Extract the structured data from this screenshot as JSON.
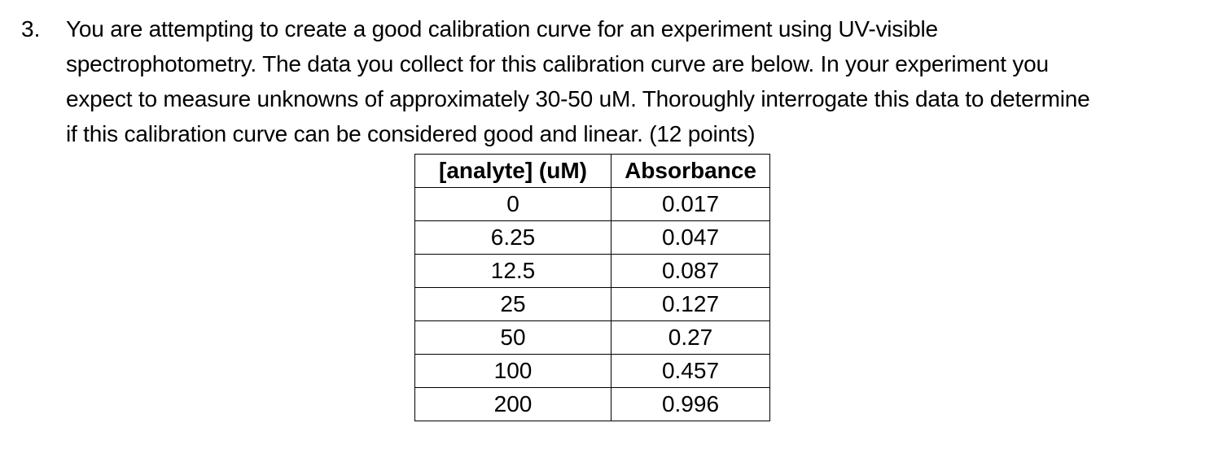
{
  "question": {
    "number": "3.",
    "lines": [
      "You are attempting to create a good calibration curve for an experiment using UV-visible",
      "spectrophotometry. The data you collect for this calibration curve are below. In your experiment you",
      "expect to measure unknowns of approximately 30-50 uM. Thoroughly interrogate this data to determine",
      "if this calibration curve can be considered good and linear. (12 points)"
    ]
  },
  "table": {
    "headers": [
      "[analyte] (uM)",
      "Absorbance"
    ],
    "rows": [
      [
        "0",
        "0.017"
      ],
      [
        "6.25",
        "0.047"
      ],
      [
        "12.5",
        "0.087"
      ],
      [
        "25",
        "0.127"
      ],
      [
        "50",
        "0.27"
      ],
      [
        "100",
        "0.457"
      ],
      [
        "200",
        "0.996"
      ]
    ]
  }
}
